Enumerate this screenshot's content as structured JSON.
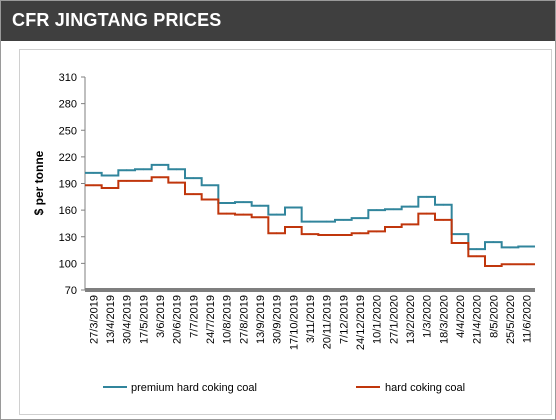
{
  "header": {
    "title": "CFR JINGTANG PRICES"
  },
  "chart_data": {
    "type": "line",
    "title": "CFR JINGTANG PRICES",
    "ylabel": "$ per tonne",
    "xlabel": "",
    "ylim": [
      70,
      310
    ],
    "yticks": [
      70,
      100,
      130,
      160,
      190,
      220,
      250,
      280,
      310
    ],
    "grid": false,
    "legend_position": "bottom",
    "x": [
      "27/3/2019",
      "13/4/2019",
      "30/4/2019",
      "17/5/2019",
      "3/6/2019",
      "20/6/2019",
      "7/7/2019",
      "24/7/2019",
      "10/8/2019",
      "27/8/2019",
      "13/9/2019",
      "30/9/2019",
      "17/10/2019",
      "3/11/2019",
      "20/11/2019",
      "7/12/2019",
      "24/12/2019",
      "10/1/2020",
      "27/1/2020",
      "13/2/2020",
      "1/3/2020",
      "18/3/2020",
      "4/4/2020",
      "21/4/2020",
      "8/5/2020",
      "25/5/2020",
      "11/6/2020"
    ],
    "series": [
      {
        "name": "premium hard coking coal",
        "color": "#31859c",
        "values": [
          202,
          199,
          205,
          206,
          211,
          206,
          196,
          188,
          168,
          169,
          165,
          155,
          163,
          147,
          147,
          149,
          151,
          160,
          161,
          164,
          175,
          166,
          133,
          116,
          124,
          118,
          119
        ]
      },
      {
        "name": "hard coking coal",
        "color": "#c0360c",
        "values": [
          188,
          185,
          193,
          193,
          197,
          191,
          178,
          172,
          156,
          155,
          152,
          134,
          141,
          133,
          132,
          132,
          134,
          136,
          141,
          144,
          156,
          149,
          123,
          108,
          97,
          99,
          99
        ]
      }
    ]
  }
}
